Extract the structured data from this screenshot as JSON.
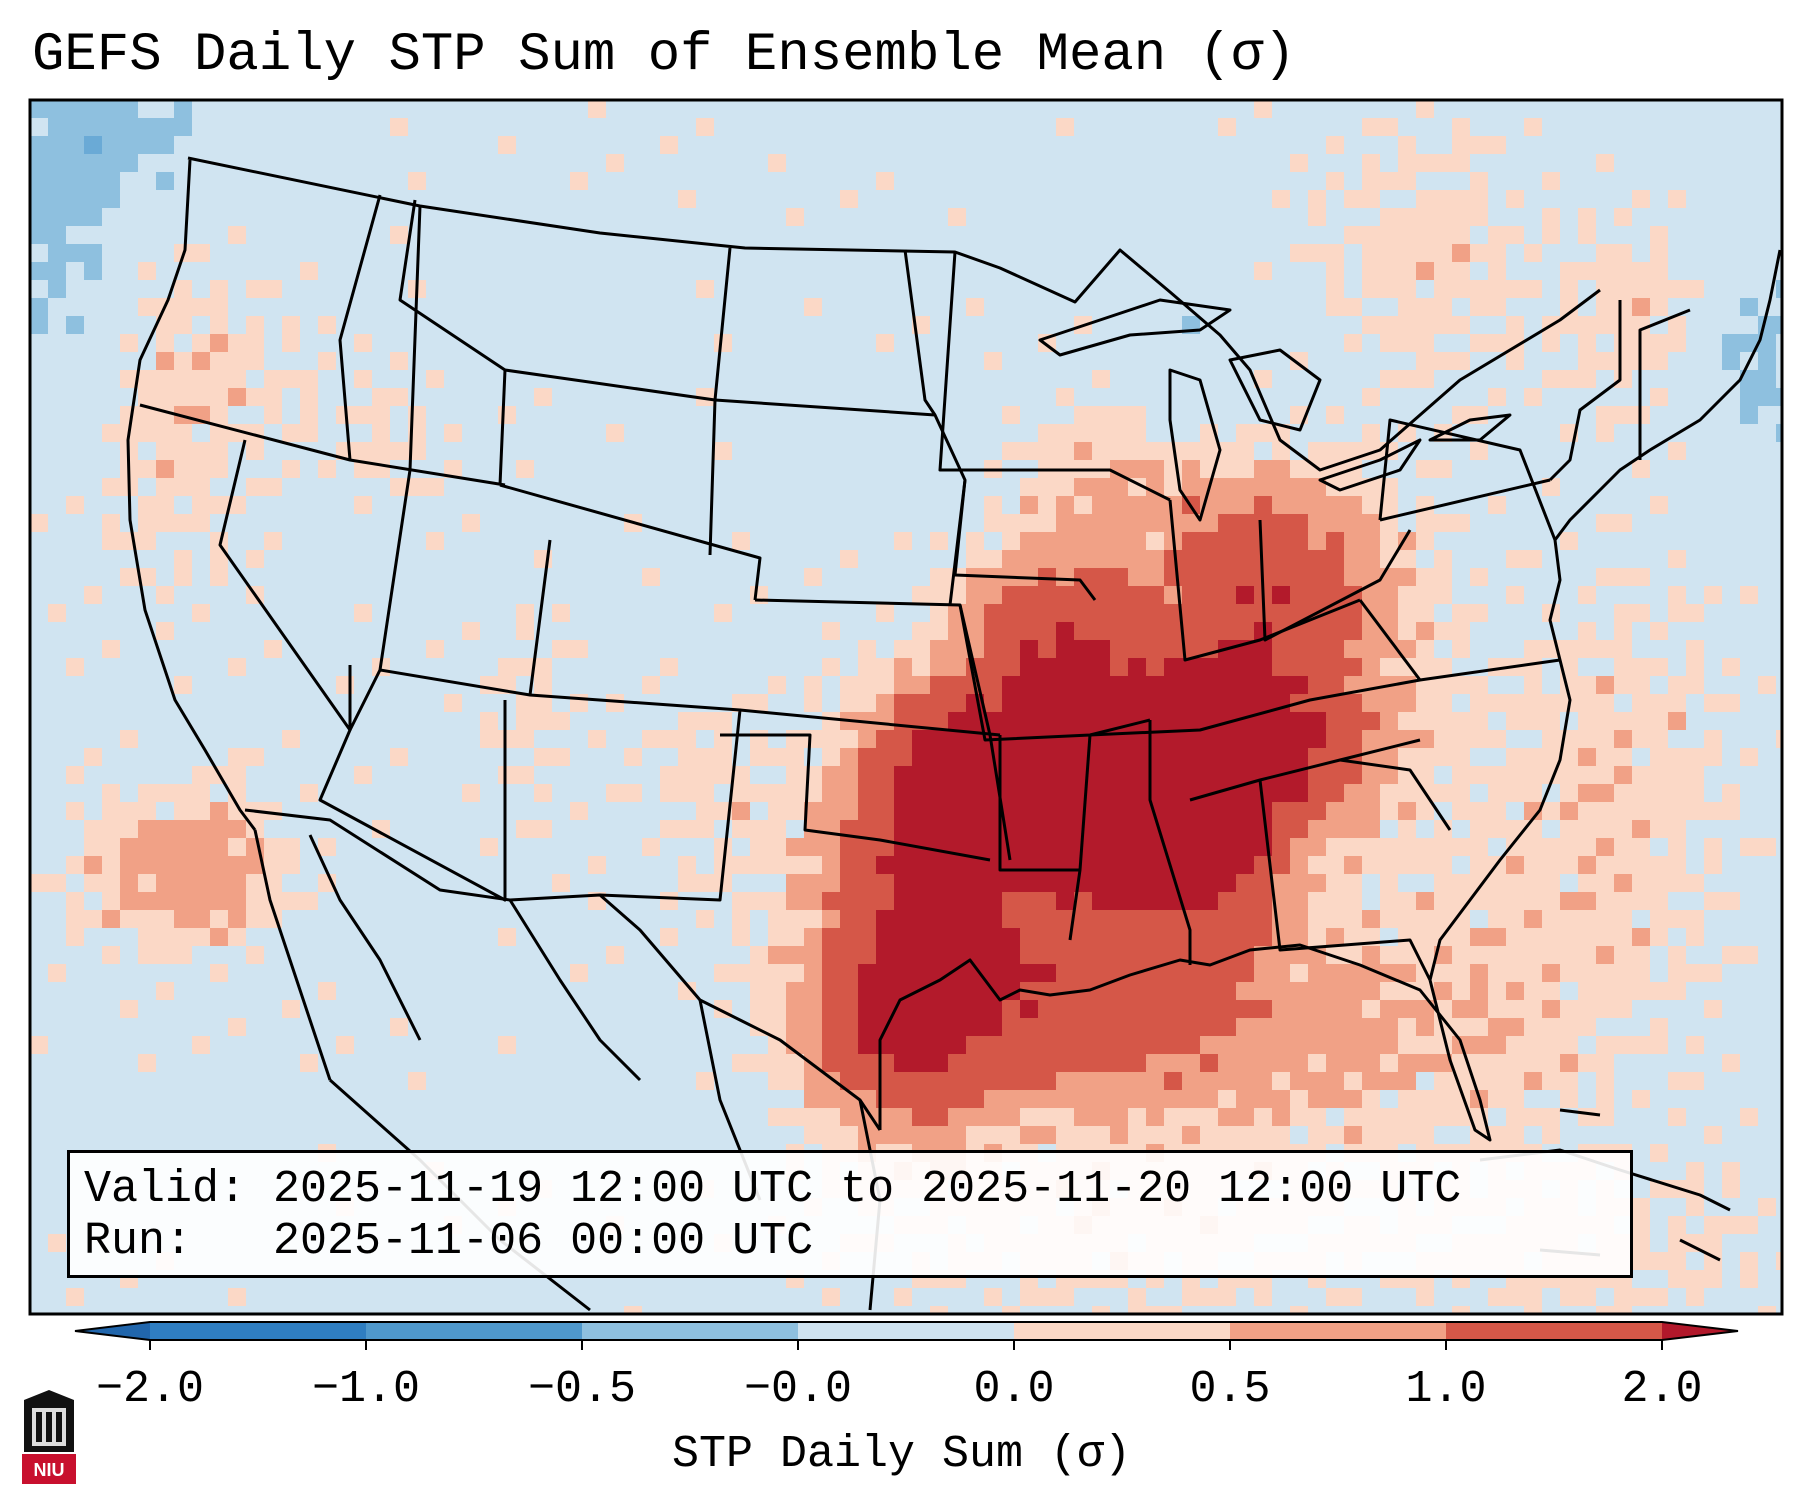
{
  "title": "GEFS Daily STP Sum of Ensemble Mean (σ)",
  "info": {
    "valid": "Valid: 2025-11-19 12:00 UTC to 2025-11-20 12:00 UTC",
    "run": "Run:   2025-11-06 00:00 UTC"
  },
  "colorbar": {
    "label": "STP Daily Sum (σ)",
    "ticks": [
      "−2.0",
      "−1.0",
      "−0.5",
      "−0.0",
      "0.0",
      "0.5",
      "1.0",
      "2.0"
    ],
    "colors": [
      "#2f7ec1",
      "#4f98cc",
      "#8ec0df",
      "#cfe3f0",
      "#fbd8c6",
      "#f1a186",
      "#d55748",
      "#b31a2b"
    ],
    "extend_low": "#2166ac",
    "extend_high": "#b2182b"
  },
  "map": {
    "ocean_color": "#d0e4f1",
    "border_color": "#000000",
    "contour_levels": [
      0.2,
      0.5,
      1.0,
      2.0
    ],
    "contour_colors": [
      "#fbd8c6",
      "#f1a186",
      "#d55748",
      "#b31a2b"
    ],
    "negative_levels": [
      -0.5,
      -1.0
    ],
    "negative_colors": [
      "#8ec0df",
      "#6aaad6"
    ]
  },
  "logo": {
    "text": "NIU"
  }
}
